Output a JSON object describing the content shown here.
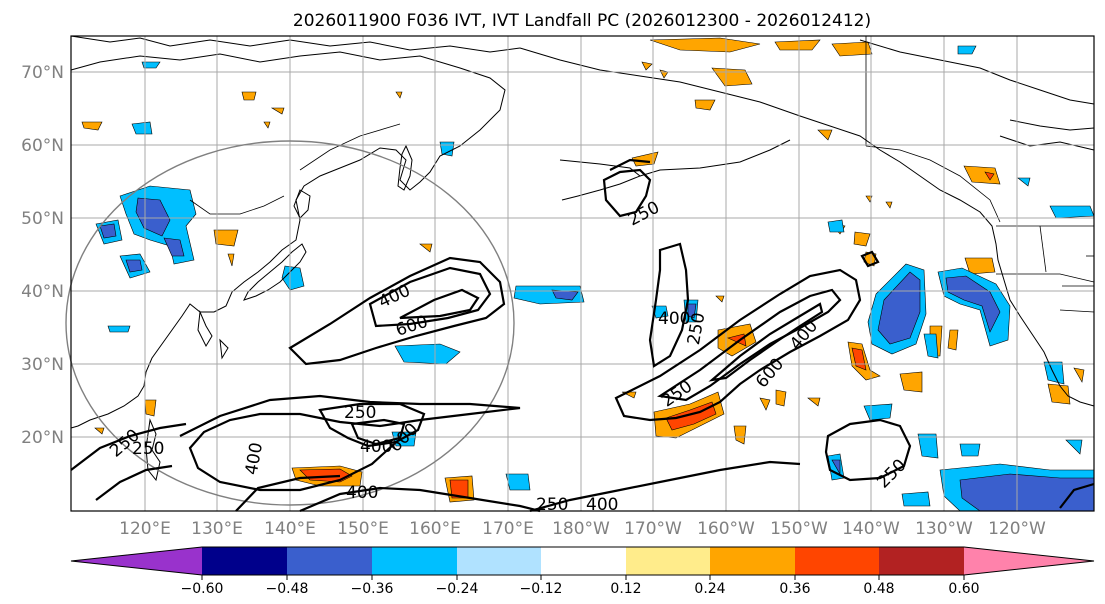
{
  "title": "2026011900 F036 IVT, IVT Landfall PC (2026012300 - 2026012412)",
  "lat_labels": [
    "70°N",
    "60°N",
    "50°N",
    "40°N",
    "30°N",
    "20°N"
  ],
  "lon_labels": [
    "120°E",
    "130°E",
    "140°E",
    "150°E",
    "160°E",
    "170°E",
    "180°W",
    "170°W",
    "160°W",
    "150°W",
    "140°W",
    "130°W",
    "120°W"
  ],
  "colorbar": {
    "colors": [
      "#9932cc",
      "#00008b",
      "#3a5fcd",
      "#00bfff",
      "#b0e2ff",
      "#ffffff",
      "#ffec8b",
      "#ffa500",
      "#ff4500",
      "#b22222",
      "#ff82ab"
    ],
    "tick_labels": [
      "−0.60",
      "−0.48",
      "−0.36",
      "−0.24",
      "−0.12",
      "0.12",
      "0.24",
      "0.36",
      "0.48",
      "0.60"
    ]
  },
  "contour_labels": [
    "250",
    "400",
    "600",
    "400",
    "250",
    "400",
    "600",
    "250",
    "250",
    "400",
    "400",
    "250",
    "400",
    "250",
    "600",
    "400",
    "250",
    "250",
    "400"
  ],
  "icons": {
    "range_ring": "circle-outline",
    "coastlines": "map-lines"
  }
}
